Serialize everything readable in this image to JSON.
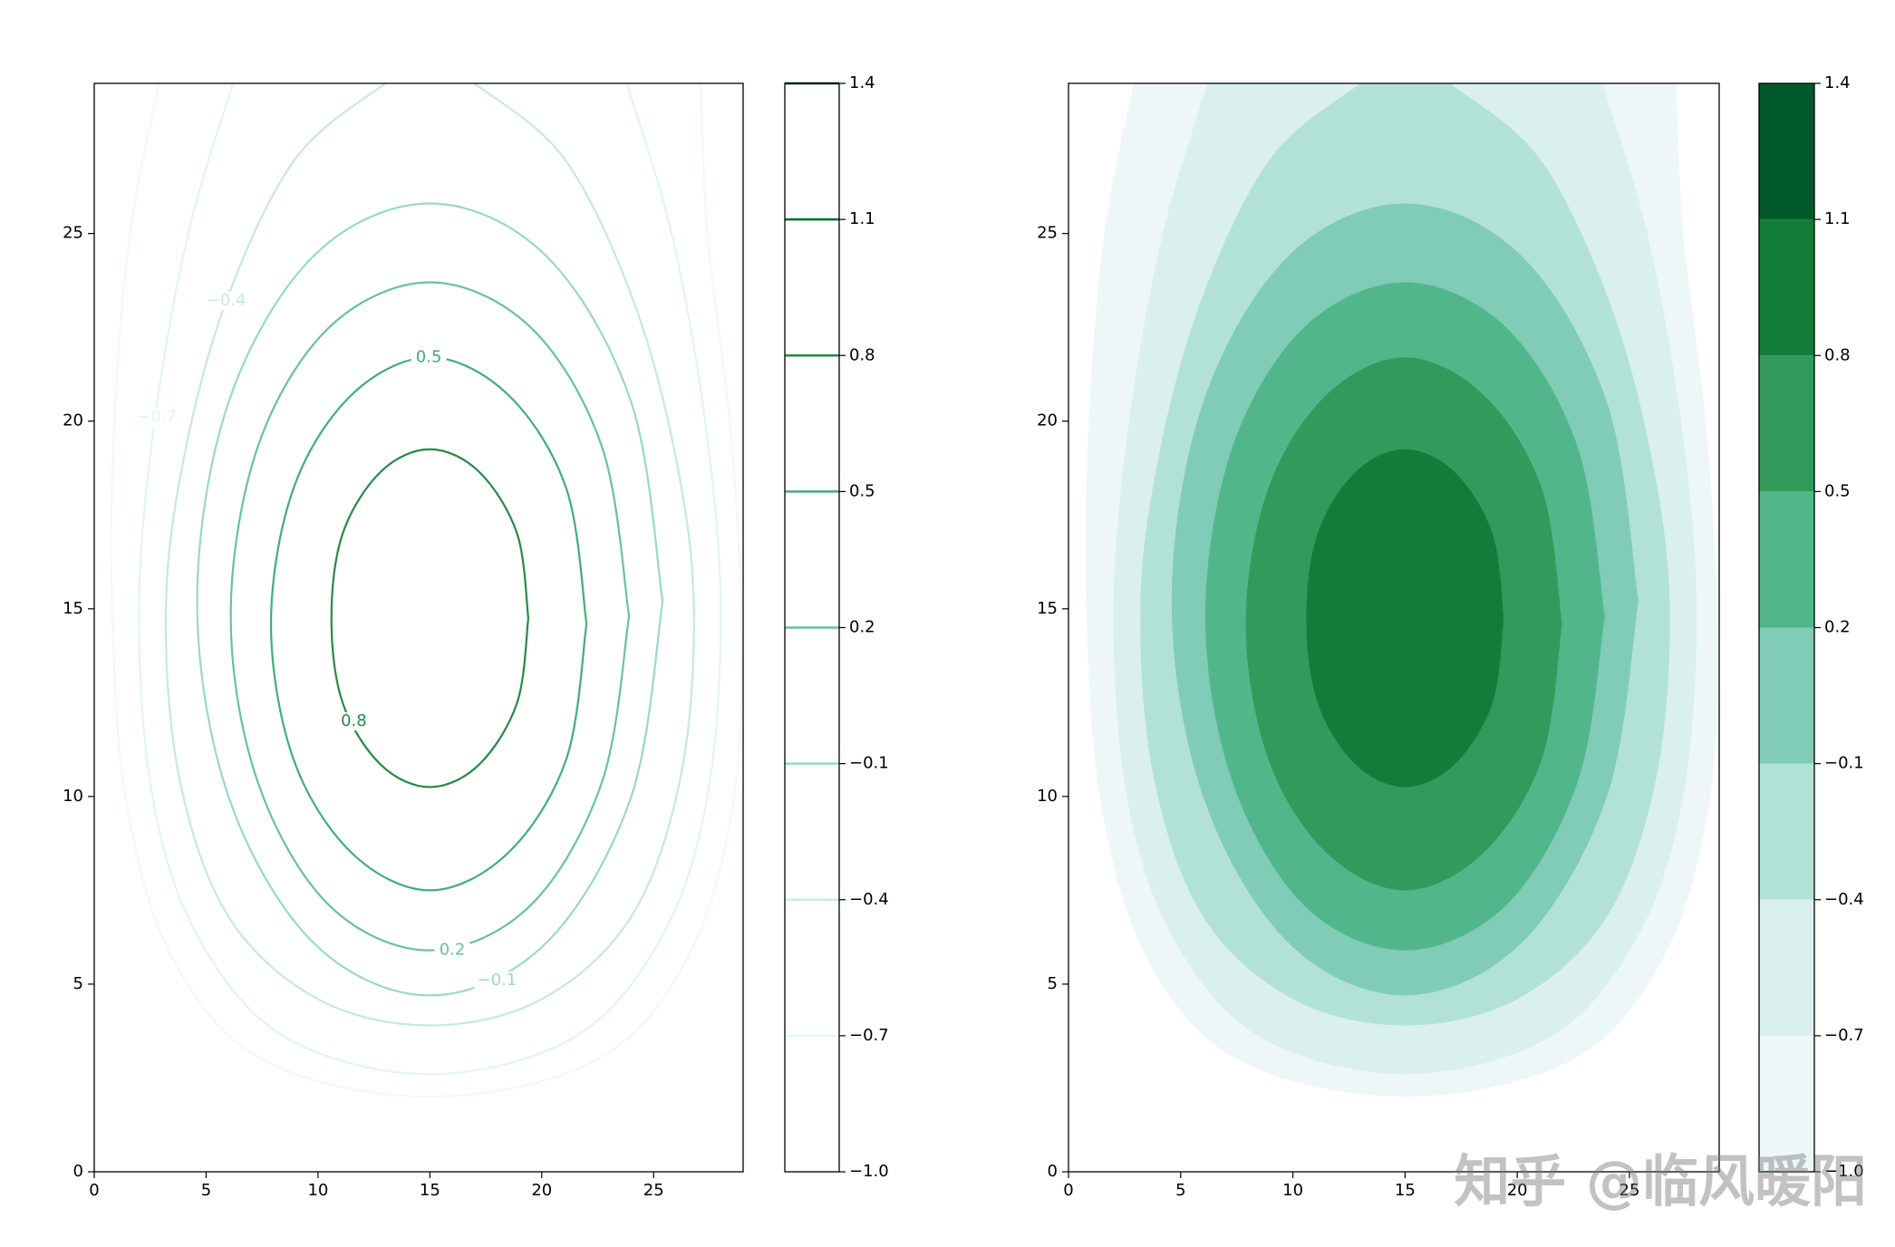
{
  "chart_data": [
    {
      "type": "contour",
      "xlim": [
        0,
        29
      ],
      "ylim": [
        0,
        29
      ],
      "xticks": [
        0,
        5,
        10,
        15,
        20,
        25
      ],
      "yticks": [
        0,
        5,
        10,
        15,
        20,
        25
      ],
      "levels": [
        {
          "value": -1.0,
          "label": "−1.0"
        },
        {
          "value": -0.7,
          "label": "−0.7"
        },
        {
          "value": -0.4,
          "label": "−0.4"
        },
        {
          "value": -0.1,
          "label": "−0.1"
        },
        0.2,
        0.5,
        0.8,
        1.1,
        1.4
      ],
      "colors": [
        "#f7fcfd",
        "#e5f5f9",
        "#ccece6",
        "#99d8c9",
        "#66c2a4",
        "#41ae76",
        "#238b45",
        "#006d2c",
        "#00441b"
      ],
      "contours": [
        {
          "color": "#f0f9f8",
          "x": [
            2.9,
            1.6,
            0.9,
            0.8,
            1.4,
            3.4,
            7.5,
            15,
            22.5,
            26.6,
            28.6,
            28.9,
            28.4,
            27.4,
            27.1
          ],
          "y": [
            29,
            25,
            20,
            15,
            10,
            5.8,
            3.0,
            2.0,
            3.0,
            5.8,
            10,
            15,
            20,
            25,
            29
          ]
        },
        {
          "color": "#e2f4f3",
          "x": [
            6.2,
            4.2,
            2.7,
            2.0,
            2.6,
            4.6,
            8.5,
            15,
            21.5,
            25.4,
            27.4,
            28.0,
            27.3,
            25.8,
            23.8
          ],
          "y": [
            29,
            25,
            20,
            15,
            10,
            6.3,
            3.6,
            2.6,
            3.6,
            6.3,
            10,
            15,
            20,
            25,
            29
          ]
        },
        {
          "color": "#c6e9df",
          "x": [
            13,
            9,
            5.9,
            4,
            3.2,
            3.8,
            6,
            10,
            15,
            20,
            24,
            26.2,
            26.8,
            26,
            24.1,
            21,
            17
          ],
          "y": [
            29,
            27,
            23.2,
            19,
            15,
            10.5,
            6.8,
            4.6,
            3.9,
            4.6,
            6.8,
            10.5,
            15,
            19,
            23.2,
            27,
            29
          ]
        },
        {
          "color": "#99d8c9",
          "x": [
            25.4,
            24.0,
            20.2,
            15,
            9.8,
            6.0,
            4.6,
            6.0,
            9.8,
            15,
            20.2,
            24.0,
            25.4
          ],
          "y": [
            15.2,
            20.5,
            24.4,
            25.8,
            24.4,
            20.5,
            15.2,
            10.0,
            6.1,
            4.7,
            6.1,
            10.0,
            15.2
          ]
        },
        {
          "color": "#66c2a4",
          "x": [
            23.9,
            22.7,
            19.5,
            15,
            10.5,
            7.3,
            6.1,
            7.3,
            10.5,
            15,
            19.5,
            22.7,
            23.9
          ],
          "y": [
            14.8,
            19.3,
            22.5,
            23.7,
            22.5,
            19.3,
            14.8,
            10.4,
            7.1,
            5.9,
            7.1,
            10.4,
            14.8
          ]
        },
        {
          "color": "#41ae76",
          "x": [
            22.0,
            21.1,
            18.5,
            15,
            11.5,
            8.9,
            7.9,
            8.9,
            11.5,
            15,
            18.5,
            21.1,
            22.0
          ],
          "y": [
            14.6,
            18.2,
            20.7,
            21.7,
            20.7,
            18.2,
            14.6,
            11.0,
            8.5,
            7.5,
            8.5,
            11.0,
            14.6
          ]
        },
        {
          "color": "#238b45",
          "x": [
            19.4,
            18.9,
            17.2,
            15,
            12.8,
            11.1,
            10.6,
            11.1,
            12.8,
            15,
            17.2,
            18.9,
            19.4
          ],
          "y": [
            14.75,
            17.0,
            18.65,
            19.25,
            18.65,
            17.0,
            14.75,
            12.5,
            10.85,
            10.25,
            10.85,
            12.5,
            14.75
          ]
        }
      ],
      "contour_labels": [
        {
          "text": "0.8",
          "x": 11.6,
          "y": 12.0,
          "color": "#238b45"
        },
        {
          "text": "0.5",
          "x": 14.95,
          "y": 21.7,
          "color": "#41ae76"
        },
        {
          "text": "0.2",
          "x": 16.0,
          "y": 5.9,
          "color": "#66c2a4"
        },
        {
          "text": "−0.1",
          "x": 18.0,
          "y": 5.1,
          "color": "#99d8c9"
        },
        {
          "text": "−0.4",
          "x": 5.9,
          "y": 23.2,
          "color": "#c6e9df"
        },
        {
          "text": "−0.7",
          "x": 2.8,
          "y": 20.1,
          "color": "#e2f4f3"
        }
      ]
    },
    {
      "type": "contourf",
      "xlim": [
        0,
        29
      ],
      "ylim": [
        0,
        29
      ],
      "xticks": [
        0,
        5,
        10,
        15,
        20,
        25
      ],
      "yticks": [
        0,
        5,
        10,
        15,
        20,
        25
      ],
      "levels": [
        {
          "value": -1.0,
          "label": "−1.0"
        },
        {
          "value": -0.7,
          "label": "−0.7"
        },
        {
          "value": -0.4,
          "label": "−0.4"
        },
        {
          "value": -0.1,
          "label": "−0.1"
        },
        0.2,
        0.5,
        0.8,
        1.1,
        1.4
      ],
      "colors": [
        "#eef7f8",
        "#d9f0ef",
        "#b2e2d6",
        "#80ccb7",
        "#51b78b",
        "#329a5a",
        "#127c3a",
        "#00592a"
      ],
      "contours": [
        {
          "color": "#eef7f8",
          "x": [
            2.9,
            1.6,
            0.9,
            0.8,
            1.4,
            3.4,
            7.5,
            15,
            22.5,
            26.6,
            28.6,
            28.9,
            28.4,
            27.4,
            27.1
          ],
          "y": [
            29,
            25,
            20,
            15,
            10,
            5.8,
            3.0,
            2.0,
            3.0,
            5.8,
            10,
            15,
            20,
            25,
            29
          ]
        },
        {
          "color": "#d9f0ef",
          "x": [
            6.2,
            4.2,
            2.7,
            2.0,
            2.6,
            4.6,
            8.5,
            15,
            21.5,
            25.4,
            27.4,
            28.0,
            27.3,
            25.8,
            23.8
          ],
          "y": [
            29,
            25,
            20,
            15,
            10,
            6.3,
            3.6,
            2.6,
            3.6,
            6.3,
            10,
            15,
            20,
            25,
            29
          ]
        },
        {
          "color": "#b2e2d6",
          "x": [
            13,
            9,
            5.9,
            4,
            3.2,
            3.8,
            6,
            10,
            15,
            20,
            24,
            26.2,
            26.8,
            26,
            24.1,
            21,
            17
          ],
          "y": [
            29,
            27,
            23.2,
            19,
            15,
            10.5,
            6.8,
            4.6,
            3.9,
            4.6,
            6.8,
            10.5,
            15,
            19,
            23.2,
            27,
            29
          ]
        },
        {
          "color": "#80ccb7",
          "x": [
            25.4,
            24.0,
            20.2,
            15,
            9.8,
            6.0,
            4.6,
            6.0,
            9.8,
            15,
            20.2,
            24.0,
            25.4
          ],
          "y": [
            15.2,
            20.5,
            24.4,
            25.8,
            24.4,
            20.5,
            15.2,
            10.0,
            6.1,
            4.7,
            6.1,
            10.0,
            15.2
          ]
        },
        {
          "color": "#51b78b",
          "x": [
            23.9,
            22.7,
            19.5,
            15,
            10.5,
            7.3,
            6.1,
            7.3,
            10.5,
            15,
            19.5,
            22.7,
            23.9
          ],
          "y": [
            14.8,
            19.3,
            22.5,
            23.7,
            22.5,
            19.3,
            14.8,
            10.4,
            7.1,
            5.9,
            7.1,
            10.4,
            14.8
          ]
        },
        {
          "color": "#329a5a",
          "x": [
            22.0,
            21.1,
            18.5,
            15,
            11.5,
            8.9,
            7.9,
            8.9,
            11.5,
            15,
            18.5,
            21.1,
            22.0
          ],
          "y": [
            14.6,
            18.2,
            20.7,
            21.7,
            20.7,
            18.2,
            14.6,
            11.0,
            8.5,
            7.5,
            8.5,
            11.0,
            14.6
          ]
        },
        {
          "color": "#127c3a",
          "x": [
            19.4,
            18.9,
            17.2,
            15,
            12.8,
            11.1,
            10.6,
            11.1,
            12.8,
            15,
            17.2,
            18.9,
            19.4
          ],
          "y": [
            14.75,
            17.0,
            18.65,
            19.25,
            18.65,
            17.0,
            14.75,
            12.5,
            10.85,
            10.25,
            10.85,
            12.5,
            14.75
          ]
        }
      ]
    }
  ],
  "watermark": "知乎 @临风暖阳"
}
